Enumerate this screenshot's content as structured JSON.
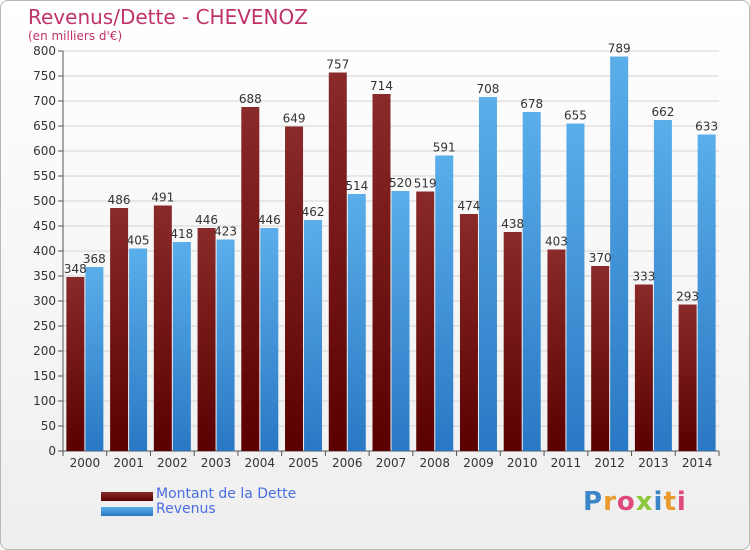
{
  "chart_data": {
    "type": "bar",
    "title": "Revenus/Dette - CHEVENOZ",
    "subtitle": "(en milliers d'€)",
    "categories": [
      "2000",
      "2001",
      "2002",
      "2003",
      "2004",
      "2005",
      "2006",
      "2007",
      "2008",
      "2009",
      "2010",
      "2011",
      "2012",
      "2013",
      "2014"
    ],
    "series": [
      {
        "name": "Montant de la Dette",
        "values": [
          348,
          486,
          491,
          446,
          688,
          649,
          757,
          714,
          519,
          474,
          438,
          403,
          370,
          333,
          293
        ],
        "color_top": "#8a2a2a",
        "color_bottom": "#5a0000"
      },
      {
        "name": "Revenus",
        "values": [
          368,
          405,
          418,
          423,
          446,
          462,
          514,
          520,
          591,
          708,
          678,
          655,
          789,
          662,
          633
        ],
        "color_top": "#5aaeea",
        "color_bottom": "#2a78c4"
      }
    ],
    "ylim": [
      0,
      800
    ],
    "ytick_step": 50,
    "grid": true,
    "legend_position": "bottom-left"
  },
  "legend": {
    "debt_label": "Montant de la Dette",
    "revenue_label": "Revenus"
  },
  "logo": {
    "text": "Proxiti",
    "letter_colors": [
      "#3a86c8",
      "#e89a2c",
      "#e04a7a",
      "#8cc83c",
      "#3a86c8",
      "#e89a2c",
      "#e04a7a"
    ]
  }
}
